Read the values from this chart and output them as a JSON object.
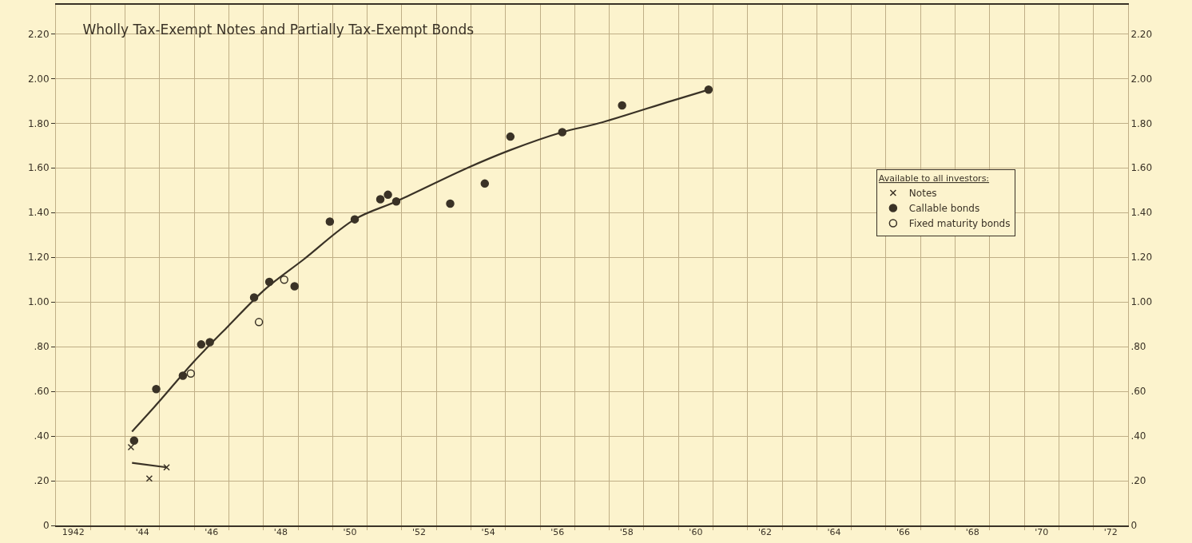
{
  "chart_data": {
    "type": "scatter",
    "title": "Wholly Tax-Exempt Notes and Partially Tax-Exempt Bonds",
    "legend_title": "Available to all investors:",
    "legend": "right",
    "grid": true,
    "xlim": [
      1941.5,
      1972.5
    ],
    "xticks": [
      1942,
      {
        "value": 1944,
        "label": "'44"
      },
      {
        "value": 1946,
        "label": "'46"
      },
      {
        "value": 1948,
        "label": "'48"
      },
      {
        "value": 1950,
        "label": "'50"
      },
      {
        "value": 1952,
        "label": "'52"
      },
      {
        "value": 1954,
        "label": "'54"
      },
      {
        "value": 1956,
        "label": "'56"
      },
      {
        "value": 1958,
        "label": "'58"
      },
      {
        "value": 1960,
        "label": "'60"
      },
      {
        "value": 1962,
        "label": "'62"
      },
      {
        "value": 1964,
        "label": "'64"
      },
      {
        "value": 1966,
        "label": "'66"
      },
      {
        "value": 1968,
        "label": "'68"
      },
      {
        "value": 1970,
        "label": "'70"
      },
      {
        "value": 1972,
        "label": "'72"
      },
      {
        "value": 1942.5,
        "label": null
      },
      {
        "value": 1943.5,
        "label": null
      },
      {
        "value": 1944.5,
        "label": null
      },
      {
        "value": 1945.5,
        "label": null
      },
      {
        "value": 1946.5,
        "label": null
      },
      {
        "value": 1947.5,
        "label": null
      },
      {
        "value": 1948.5,
        "label": null
      },
      {
        "value": 1949.5,
        "label": null
      },
      {
        "value": 1950.5,
        "label": null
      },
      {
        "value": 1951.5,
        "label": null
      },
      {
        "value": 1952.5,
        "label": null
      },
      {
        "value": 1953.5,
        "label": null
      },
      {
        "value": 1954.5,
        "label": null
      },
      {
        "value": 1955.5,
        "label": null
      },
      {
        "value": 1956.5,
        "label": null
      },
      {
        "value": 1957.5,
        "label": null
      },
      {
        "value": 1958.5,
        "label": null
      },
      {
        "value": 1959.5,
        "label": null
      },
      {
        "value": 1960.5,
        "label": null
      },
      {
        "value": 1961.5,
        "label": null
      },
      {
        "value": 1962.5,
        "label": null
      },
      {
        "value": 1963.5,
        "label": null
      },
      {
        "value": 1964.5,
        "label": null
      },
      {
        "value": 1965.5,
        "label": null
      },
      {
        "value": 1966.5,
        "label": null
      },
      {
        "value": 1967.5,
        "label": null
      },
      {
        "value": 1968.5,
        "label": null
      },
      {
        "value": 1969.5,
        "label": null
      },
      {
        "value": 1970.5,
        "label": null
      },
      {
        "value": 1971.5,
        "label": null
      }
    ],
    "ylim": [
      0,
      2.33
    ],
    "yticks": [
      0,
      {
        "value": 0.2,
        "label": ".20"
      },
      {
        "value": 0.4,
        "label": ".40"
      },
      {
        "value": 0.6,
        "label": ".60"
      },
      {
        "value": 0.8,
        "label": ".80"
      },
      {
        "value": 1.0,
        "label": "1.00"
      },
      {
        "value": 1.2,
        "label": "1.20"
      },
      {
        "value": 1.4,
        "label": "1.40"
      },
      {
        "value": 1.6,
        "label": "1.60"
      },
      {
        "value": 1.8,
        "label": "1.80"
      },
      {
        "value": 2.0,
        "label": "2.00"
      },
      {
        "value": 2.2,
        "label": "2.20"
      }
    ],
    "y2lim": [
      0,
      2.33
    ],
    "y2ticks": [
      0,
      {
        "value": 0.2,
        "label": ".20"
      },
      {
        "value": 0.4,
        "label": ".40"
      },
      {
        "value": 0.6,
        "label": ".60"
      },
      {
        "value": 0.8,
        "label": ".80"
      },
      {
        "value": 1.0,
        "label": "1.00"
      },
      {
        "value": 1.2,
        "label": "1.20"
      },
      {
        "value": 1.4,
        "label": "1.40"
      },
      {
        "value": 1.6,
        "label": "1.60"
      },
      {
        "value": 1.8,
        "label": "1.80"
      },
      {
        "value": 2.0,
        "label": "2.00"
      },
      {
        "value": 2.2,
        "label": "2.20"
      }
    ],
    "series": [
      {
        "type": "line",
        "color": "#3a3226",
        "marker": "none",
        "line_style": "solid",
        "x": [
          1943.7,
          1944.46,
          1945.47,
          1946.47,
          1947.57,
          1948.66,
          1950.14,
          1951.34,
          1953.4,
          1954.64,
          1956.14,
          1957.2,
          1959.3,
          1960.37
        ],
        "values": [
          0.42,
          0.55,
          0.73,
          0.89,
          1.06,
          1.19,
          1.37,
          1.45,
          1.6,
          1.68,
          1.76,
          1.8,
          1.9,
          1.95
        ]
      },
      {
        "type": "line",
        "color": "#3a3226",
        "marker": "none",
        "line_style": "solid",
        "x": [
          1943.7,
          1944.7
        ],
        "values": [
          0.28,
          0.26
        ]
      },
      {
        "name": "Notes",
        "marker": "cross",
        "color": "#3a3226",
        "x": [
          1943.67,
          1944.2,
          1944.7
        ],
        "values": [
          0.35,
          0.21,
          0.26
        ]
      },
      {
        "name": "Callable bonds",
        "marker": "circle",
        "color": "#3a3226",
        "x": [
          1943.76,
          1944.4,
          1945.17,
          1945.7,
          1945.95,
          1947.23,
          1947.67,
          1948.4,
          1949.42,
          1950.14,
          1950.88,
          1951.1,
          1951.34,
          1952.9,
          1953.9,
          1954.64,
          1956.14,
          1957.87,
          1960.37
        ],
        "values": [
          0.38,
          0.61,
          0.67,
          0.81,
          0.82,
          1.02,
          1.09,
          1.07,
          1.36,
          1.37,
          1.46,
          1.48,
          1.45,
          1.44,
          1.53,
          1.74,
          1.76,
          1.88,
          1.95
        ]
      },
      {
        "name": "Fixed maturity bonds",
        "marker": "circle",
        "color": "#3a3226",
        "x": [
          1945.4,
          1947.37,
          1948.1
        ],
        "values": [
          0.68,
          0.91,
          1.1
        ]
      }
    ]
  }
}
